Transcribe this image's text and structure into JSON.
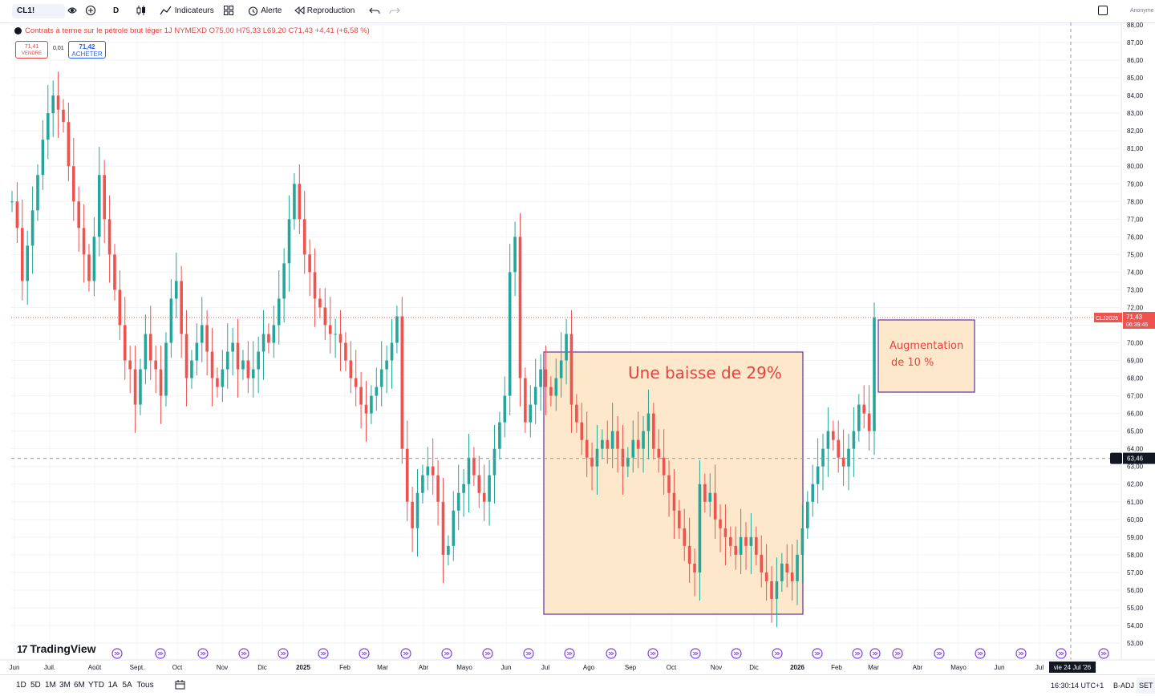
{
  "toolbar": {
    "symbol": "CL1!",
    "interval": "D",
    "indicators_label": "Indicateurs",
    "alert_label": "Alerte",
    "replay_label": "Reproduction",
    "user_label": "Anonyme"
  },
  "legend": {
    "text": "Contrats à terme sur le pétrole brut léger 1J NYMEXD O75,00 H75,33 L69,20 C71,43 +4,41 (+6,58 %)",
    "sell_price": "71,41",
    "sell_label": "VENDRE",
    "spread": "0,01",
    "buy_price": "71,42",
    "buy_label": "ACHETER"
  },
  "price_axis": {
    "ticks": [
      "88,00",
      "87,00",
      "86,00",
      "85,00",
      "84,00",
      "83,00",
      "82,00",
      "81,00",
      "80,00",
      "79,00",
      "78,00",
      "77,00",
      "76,00",
      "75,00",
      "74,00",
      "73,00",
      "72,00",
      "71,00",
      "70,00",
      "69,00",
      "68,00",
      "67,00",
      "66,00",
      "65,00",
      "64,00",
      "63,00",
      "62,00",
      "61,00",
      "60,00",
      "59,00",
      "58,00",
      "57,00",
      "56,00",
      "55,00",
      "54,00",
      "53,00"
    ],
    "ticks_values": [
      88,
      87,
      86,
      85,
      84,
      83,
      82,
      81,
      80,
      79,
      78,
      77,
      76,
      75,
      74,
      73,
      72,
      71,
      70,
      69,
      68,
      67,
      66,
      65,
      64,
      63,
      62,
      61,
      60,
      59,
      58,
      57,
      56,
      55,
      54,
      53
    ],
    "current_symbol_label": "CLJ2026",
    "current_price": "71,43",
    "countdown": "06:39:45",
    "crosshair_price": "63,46"
  },
  "time_axis": {
    "labels": [
      "Jun",
      "Juil.",
      "Août",
      "Sept.",
      "Oct",
      "Nov",
      "Dic",
      "2025",
      "Feb",
      "Mar",
      "Abr",
      "Mayo",
      "Jun",
      "Jul",
      "Ago",
      "Sep",
      "Oct",
      "Nov",
      "Dic",
      "2026",
      "Feb",
      "Mar",
      "Abr",
      "Mayo",
      "Jun",
      "Jul"
    ],
    "crosshair_date": "vie 24 Jul '26"
  },
  "annotations": {
    "decline_text": "Une baisse de 29%",
    "increase_text_1": "Augmentation",
    "increase_text_2": "de 10 %"
  },
  "bottom_bar": {
    "timeframes": [
      "1D",
      "5D",
      "1M",
      "3M",
      "6M",
      "YTD",
      "1A",
      "5A",
      "Tous"
    ],
    "clock": "16:30:14 UTC+1",
    "badj": "B-ADJ",
    "set": "SET"
  },
  "watermark": "TradingView",
  "chart_data": {
    "type": "line",
    "title": "",
    "xlabel": "",
    "ylabel": "",
    "ylim": [
      52.5,
      88.2
    ],
    "series": [
      {
        "values": [
          78.0,
          76.5,
          73.5,
          75.5,
          77.5,
          79.5,
          81.5,
          83.0,
          84.0,
          83.2,
          82.5,
          80.0,
          78.0,
          76.5,
          75.0,
          73.5,
          76.0,
          79.5,
          77.0,
          75.0,
          73.0,
          71.0,
          69.0,
          68.5,
          66.5,
          68.5,
          70.5,
          69.0,
          68.5,
          67.0,
          70.0,
          72.5,
          73.5,
          70.5,
          68.0,
          69.0,
          70.0,
          71.0,
          69.5,
          68.0,
          67.5,
          68.5,
          69.5,
          70.0,
          68.5,
          69.0,
          68.0,
          68.5,
          69.5,
          70.5,
          70.0,
          71.0,
          72.5,
          74.5,
          77.0,
          79.0,
          77.0,
          75.0,
          74.0,
          72.5,
          72.0,
          71.0,
          70.5,
          70.5,
          70.0,
          69.0,
          68.0,
          67.5,
          66.5,
          66.0,
          67.0,
          67.5,
          68.5,
          69.0,
          70.0,
          71.5,
          64.0,
          61.0,
          59.5,
          61.5,
          62.5,
          63.0,
          62.5,
          61.0,
          58.0,
          58.5,
          60.5,
          61.5,
          62.0,
          63.5,
          62.5,
          61.5,
          61.0,
          62.5,
          64.0,
          65.5,
          67.0,
          74.0,
          76.0,
          68.0,
          65.5,
          66.5,
          67.5,
          68.5,
          67.5,
          67.0,
          68.0,
          69.0,
          70.5,
          66.5,
          65.5,
          64.5,
          63.5,
          63.0,
          64.0,
          64.5,
          64.0,
          65.0,
          64.0,
          63.0,
          63.5,
          64.5,
          64.0,
          65.0,
          66.0,
          64.0,
          63.5,
          62.5,
          61.5,
          60.5,
          59.5,
          58.5,
          57.5,
          57.0,
          62.0,
          61.0,
          61.5,
          60.0,
          59.5,
          59.0,
          58.5,
          58.0,
          59.0,
          58.5,
          59.0,
          58.0,
          57.0,
          56.5,
          55.5,
          56.5,
          57.5,
          57.0,
          56.5,
          58.0,
          59.5,
          61.0,
          62.0,
          63.0,
          64.0,
          65.0,
          64.5,
          63.5,
          63.0,
          64.0,
          65.0,
          66.5,
          66.0,
          65.0,
          71.43
        ]
      }
    ],
    "grid": true,
    "legend_position": "top-left"
  }
}
